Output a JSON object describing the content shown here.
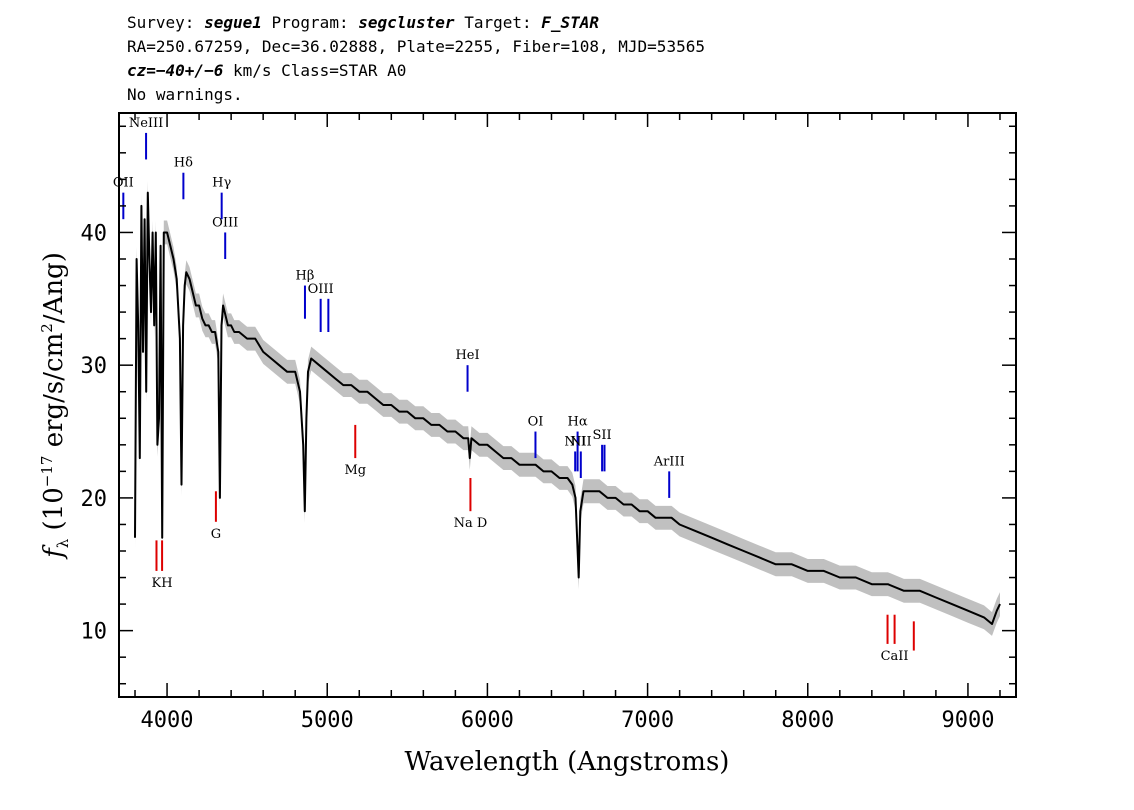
{
  "header": {
    "line1": {
      "survey_label": "Survey:",
      "survey": "segue1",
      "program_label": "Program:",
      "program": "segcluster",
      "target_label": "Target:",
      "target": "F_STAR"
    },
    "line2": "RA=250.67259, Dec=36.02888, Plate=2255, Fiber=108, MJD=53565",
    "line3": {
      "cz": "cz=−40+/−6",
      "rest": " km/s Class=STAR A0"
    },
    "line4": "No warnings."
  },
  "colors": {
    "spectrum": "#000000",
    "error_band": "#c0c0c0",
    "emission": "#0000cc",
    "absorption": "#dd0000",
    "axes": "#000000"
  },
  "chart_data": {
    "type": "line",
    "xlabel": "Wavelength (Angstroms)",
    "ylabel_parts": {
      "f": "f",
      "sub": "λ",
      "pre": " (10",
      "exp": "−17",
      "mid": " erg/s/cm",
      "exp2": "2",
      "post": "/Ang)"
    },
    "xlim": [
      3700,
      9300
    ],
    "ylim": [
      5,
      49
    ],
    "xticks": [
      4000,
      5000,
      6000,
      7000,
      8000,
      9000
    ],
    "yticks": [
      10,
      20,
      30,
      40
    ],
    "x_minor_step": 200,
    "y_minor_step": 2,
    "grid": false,
    "series": [
      {
        "kind": "flux",
        "x": [
          3800,
          3810,
          3820,
          3830,
          3840,
          3850,
          3860,
          3870,
          3880,
          3890,
          3900,
          3910,
          3920,
          3930,
          3940,
          3950,
          3960,
          3970,
          3980,
          3990,
          4000,
          4020,
          4040,
          4060,
          4080,
          4090,
          4100,
          4110,
          4120,
          4140,
          4160,
          4180,
          4200,
          4220,
          4240,
          4260,
          4280,
          4300,
          4320,
          4330,
          4340,
          4350,
          4360,
          4380,
          4400,
          4420,
          4450,
          4500,
          4550,
          4600,
          4650,
          4700,
          4750,
          4800,
          4830,
          4850,
          4860,
          4870,
          4880,
          4900,
          4950,
          5000,
          5050,
          5100,
          5150,
          5200,
          5250,
          5300,
          5350,
          5400,
          5450,
          5500,
          5550,
          5600,
          5650,
          5700,
          5750,
          5800,
          5850,
          5880,
          5890,
          5900,
          5950,
          6000,
          6050,
          6100,
          6150,
          6200,
          6250,
          6300,
          6350,
          6400,
          6450,
          6500,
          6530,
          6550,
          6560,
          6570,
          6580,
          6600,
          6650,
          6700,
          6750,
          6800,
          6850,
          6900,
          6950,
          7000,
          7050,
          7100,
          7150,
          7200,
          7300,
          7400,
          7500,
          7600,
          7700,
          7800,
          7900,
          8000,
          8100,
          8200,
          8300,
          8400,
          8500,
          8600,
          8700,
          8800,
          8900,
          9000,
          9100,
          9150,
          9180,
          9200
        ],
        "y": [
          17,
          38,
          33,
          23,
          42,
          31,
          41,
          28,
          43,
          38,
          34,
          40,
          33,
          40,
          24,
          26,
          39,
          17,
          40,
          40,
          40,
          39,
          38,
          36.5,
          32,
          21,
          33,
          36,
          37,
          36.5,
          35.5,
          34.5,
          34.5,
          33.5,
          33,
          33,
          32.5,
          32.5,
          31,
          20,
          33,
          34.5,
          34,
          33,
          33,
          32.5,
          32.5,
          32,
          32,
          31,
          30.5,
          30,
          29.5,
          29.5,
          28,
          24,
          19,
          26,
          29.5,
          30.5,
          30,
          29.5,
          29,
          28.5,
          28.5,
          28,
          28,
          27.5,
          27,
          27,
          26.5,
          26.5,
          26,
          26,
          25.5,
          25.5,
          25,
          25,
          24.5,
          24.5,
          23,
          24.5,
          24,
          24,
          23.5,
          23,
          23,
          22.5,
          22.5,
          22.5,
          22,
          22,
          21.5,
          21.5,
          21,
          20,
          17,
          14,
          19,
          20.5,
          20.5,
          20.5,
          20,
          20,
          19.5,
          19.5,
          19,
          19,
          18.5,
          18.5,
          18.5,
          18,
          17.5,
          17,
          16.5,
          16,
          15.5,
          15,
          15,
          14.5,
          14.5,
          14,
          14,
          13.5,
          13.5,
          13,
          13,
          12.5,
          12,
          11.5,
          11,
          10.5,
          11.5,
          12
        ]
      },
      {
        "kind": "error",
        "halfwidth": 0.9
      }
    ],
    "line_markers": {
      "emission": [
        {
          "label": "OII",
          "wave": 3727,
          "y0": 41,
          "y1": 43
        },
        {
          "label": "NeIII",
          "wave": 3869,
          "y0": 45.5,
          "y1": 47.5
        },
        {
          "label": "Hδ",
          "wave": 4102,
          "y0": 42.5,
          "y1": 44.5
        },
        {
          "label": "Hγ",
          "wave": 4341,
          "y0": 41,
          "y1": 43
        },
        {
          "label": "OIII",
          "wave": 4363,
          "y0": 38,
          "y1": 40
        },
        {
          "label": "Hβ",
          "wave": 4861,
          "y0": 33.5,
          "y1": 36
        },
        {
          "label": "OIII",
          "wave": 4959,
          "y0": 32.5,
          "y1": 35
        },
        {
          "label": "",
          "wave": 5007,
          "y0": 32.5,
          "y1": 35
        },
        {
          "label": "HeI",
          "wave": 5876,
          "y0": 28,
          "y1": 30
        },
        {
          "label": "OI",
          "wave": 6300,
          "y0": 23,
          "y1": 25
        },
        {
          "label": "NII",
          "wave": 6548,
          "y0": 22,
          "y1": 23.5
        },
        {
          "label": "Hα",
          "wave": 6563,
          "y0": 22,
          "y1": 25
        },
        {
          "label": "NII",
          "wave": 6583,
          "y0": 21.5,
          "y1": 23.5
        },
        {
          "label": "SII",
          "wave": 6716,
          "y0": 22,
          "y1": 24
        },
        {
          "label": "",
          "wave": 6731,
          "y0": 22,
          "y1": 24
        },
        {
          "label": "ArIII",
          "wave": 7135,
          "y0": 20,
          "y1": 22
        }
      ],
      "absorption": [
        {
          "label": "",
          "wave": 3934,
          "y0": 14.5,
          "y1": 16.8
        },
        {
          "label": "KH",
          "wave": 3969,
          "y0": 14.5,
          "y1": 16.8
        },
        {
          "label": "G",
          "wave": 4305,
          "y0": 18.2,
          "y1": 20.5
        },
        {
          "label": "Mg",
          "wave": 5175,
          "y0": 23,
          "y1": 25.5
        },
        {
          "label": "Na D",
          "wave": 5894,
          "y0": 19,
          "y1": 21.5
        },
        {
          "label": "",
          "wave": 8498,
          "y0": 9,
          "y1": 11.2
        },
        {
          "label": "CaII",
          "wave": 8542,
          "y0": 9,
          "y1": 11.2
        },
        {
          "label": "",
          "wave": 8662,
          "y0": 8.5,
          "y1": 10.7
        }
      ]
    }
  }
}
